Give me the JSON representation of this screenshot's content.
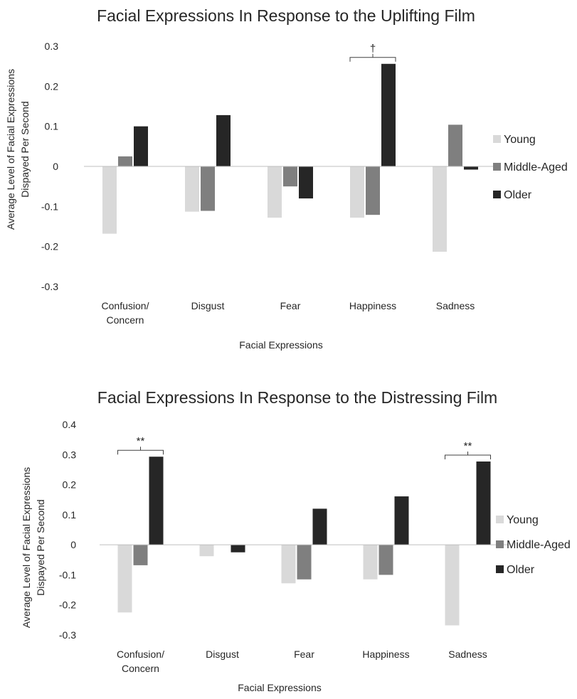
{
  "chart_data": [
    {
      "type": "bar",
      "title": "Facial Expressions In Response to the Uplifting Film",
      "xlabel": "Facial Expressions",
      "ylabel": "Average Level of Facial Expressions Dispayed Per Second",
      "categories": [
        "Confusion/ Concern",
        "Disgust",
        "Fear",
        "Happiness",
        "Sadness"
      ],
      "category_lines": [
        [
          "Confusion/",
          "Concern"
        ],
        [
          "Disgust"
        ],
        [
          "Fear"
        ],
        [
          "Happiness"
        ],
        [
          "Sadness"
        ]
      ],
      "series": [
        {
          "name": "Young",
          "color": "#d9d9d9",
          "values": [
            -0.168,
            -0.113,
            -0.128,
            -0.128,
            -0.213
          ]
        },
        {
          "name": "Middle-Aged",
          "color": "#7f7f7f",
          "values": [
            0.025,
            -0.111,
            -0.05,
            -0.121,
            0.104
          ]
        },
        {
          "name": "Older",
          "color": "#262626",
          "values": [
            0.1,
            0.128,
            -0.08,
            0.256,
            -0.008
          ]
        }
      ],
      "ylim": [
        -0.3,
        0.3
      ],
      "yticks": [
        -0.3,
        -0.2,
        -0.1,
        0,
        0.1,
        0.2,
        0.3
      ],
      "ytick_labels": [
        "-0.3",
        "-0.2",
        "-0.1",
        "0",
        "0.1",
        "0.2",
        "0.3"
      ],
      "grid": false,
      "legend_position": "right",
      "annotations": [
        {
          "text": "†",
          "category_index": 3,
          "bracket_over": "all-bars"
        }
      ]
    },
    {
      "type": "bar",
      "title": "Facial Expressions In Response to the Distressing Film",
      "xlabel": "Facial Expressions",
      "ylabel": "Average Level of Facial Expressions Dispayed Per Second",
      "categories": [
        "Confusion/ Concern",
        "Disgust",
        "Fear",
        "Happiness",
        "Sadness"
      ],
      "category_lines": [
        [
          "Confusion/",
          "Concern"
        ],
        [
          "Disgust"
        ],
        [
          "Fear"
        ],
        [
          "Happiness"
        ],
        [
          "Sadness"
        ]
      ],
      "series": [
        {
          "name": "Young",
          "color": "#d9d9d9",
          "values": [
            -0.225,
            -0.038,
            -0.128,
            -0.115,
            -0.268
          ]
        },
        {
          "name": "Middle-Aged",
          "color": "#7f7f7f",
          "values": [
            -0.068,
            0.0,
            -0.115,
            -0.1,
            0.0
          ]
        },
        {
          "name": "Older",
          "color": "#262626",
          "values": [
            0.293,
            -0.025,
            0.12,
            0.161,
            0.277
          ]
        }
      ],
      "ylim": [
        -0.3,
        0.4
      ],
      "yticks": [
        -0.3,
        -0.2,
        -0.1,
        0,
        0.1,
        0.2,
        0.3,
        0.4
      ],
      "ytick_labels": [
        "-0.3",
        "-0.2",
        "-0.1",
        "0",
        "0.1",
        "0.2",
        "0.3",
        "0.4"
      ],
      "grid": false,
      "legend_position": "right",
      "annotations": [
        {
          "text": "**",
          "category_index": 0,
          "bracket_over": "all-bars"
        },
        {
          "text": "**",
          "category_index": 4,
          "bracket_over": "all-bars"
        }
      ]
    }
  ]
}
